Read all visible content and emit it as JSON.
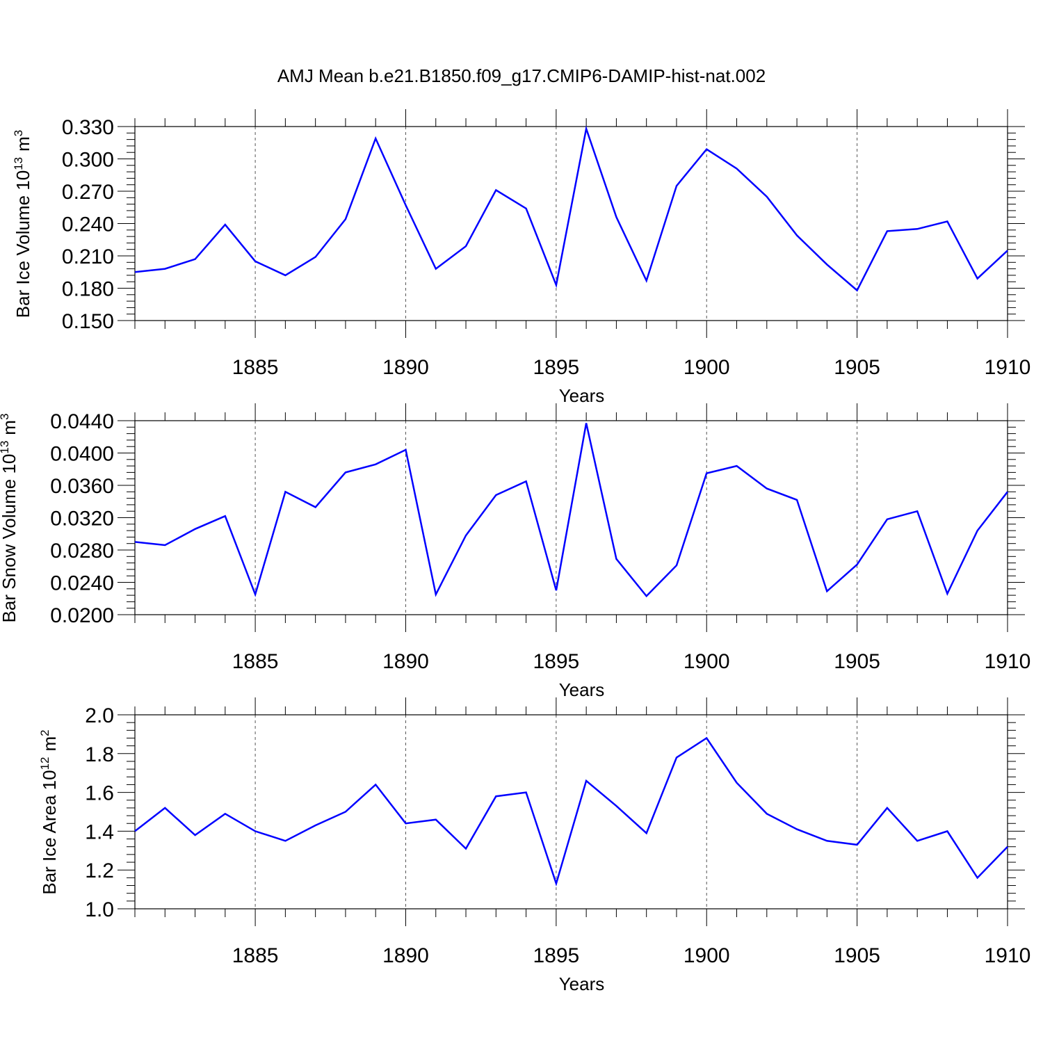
{
  "title": "AMJ Mean b.e21.B1850.f09_g17.CMIP6-DAMIP-hist-nat.002",
  "line_color": "#0000ff",
  "chart_data": [
    {
      "type": "line",
      "xlabel": "Years",
      "ylabel_main": "Bar Ice Volume 10",
      "ylabel_sup": "13",
      "ylabel_unit": "m",
      "ylabel_unit_sup": "3",
      "xlim": [
        1881,
        1910
      ],
      "ylim": [
        0.15,
        0.33
      ],
      "yticks": [
        "0.150",
        "0.180",
        "0.210",
        "0.240",
        "0.270",
        "0.300",
        "0.330"
      ],
      "xticks": [
        "1885",
        "1890",
        "1895",
        "1900",
        "1905",
        "1910"
      ],
      "grid": "vertical dashed at major x ticks",
      "x": [
        1881,
        1882,
        1883,
        1884,
        1885,
        1886,
        1887,
        1888,
        1889,
        1890,
        1891,
        1892,
        1893,
        1894,
        1895,
        1896,
        1897,
        1898,
        1899,
        1900,
        1901,
        1902,
        1903,
        1904,
        1905,
        1906,
        1907,
        1908,
        1909,
        1910
      ],
      "values": [
        0.195,
        0.198,
        0.207,
        0.239,
        0.205,
        0.192,
        0.209,
        0.244,
        0.319,
        0.257,
        0.198,
        0.219,
        0.271,
        0.254,
        0.183,
        0.328,
        0.246,
        0.187,
        0.275,
        0.309,
        0.291,
        0.265,
        0.229,
        0.202,
        0.178,
        0.233,
        0.235,
        0.242,
        0.189,
        0.215
      ]
    },
    {
      "type": "line",
      "xlabel": "Years",
      "ylabel_main": "Bar Snow Volume 10",
      "ylabel_sup": "13",
      "ylabel_unit": "m",
      "ylabel_unit_sup": "3",
      "xlim": [
        1881,
        1910
      ],
      "ylim": [
        0.02,
        0.044
      ],
      "yticks": [
        "0.0200",
        "0.0240",
        "0.0280",
        "0.0320",
        "0.0360",
        "0.0400",
        "0.0440"
      ],
      "xticks": [
        "1885",
        "1890",
        "1895",
        "1900",
        "1905",
        "1910"
      ],
      "grid": "vertical dashed at major x ticks",
      "x": [
        1881,
        1882,
        1883,
        1884,
        1885,
        1886,
        1887,
        1888,
        1889,
        1890,
        1891,
        1892,
        1893,
        1894,
        1895,
        1896,
        1897,
        1898,
        1899,
        1900,
        1901,
        1902,
        1903,
        1904,
        1905,
        1906,
        1907,
        1908,
        1909,
        1910
      ],
      "values": [
        0.029,
        0.0286,
        0.0306,
        0.0322,
        0.0225,
        0.0352,
        0.0333,
        0.0376,
        0.0386,
        0.0404,
        0.0225,
        0.0298,
        0.0348,
        0.0365,
        0.023,
        0.0437,
        0.0269,
        0.0223,
        0.0261,
        0.0375,
        0.0384,
        0.0356,
        0.0342,
        0.0229,
        0.0262,
        0.0318,
        0.0328,
        0.0226,
        0.0304,
        0.0352
      ]
    },
    {
      "type": "line",
      "xlabel": "Years",
      "ylabel_main": "Bar Ice Area 10",
      "ylabel_sup": "12",
      "ylabel_unit": "m",
      "ylabel_unit_sup": "2",
      "xlim": [
        1881,
        1910
      ],
      "ylim": [
        1.0,
        2.0
      ],
      "yticks": [
        "1.0",
        "1.2",
        "1.4",
        "1.6",
        "1.8",
        "2.0"
      ],
      "xticks": [
        "1885",
        "1890",
        "1895",
        "1900",
        "1905",
        "1910"
      ],
      "grid": "vertical dashed at major x ticks",
      "x": [
        1881,
        1882,
        1883,
        1884,
        1885,
        1886,
        1887,
        1888,
        1889,
        1890,
        1891,
        1892,
        1893,
        1894,
        1895,
        1896,
        1897,
        1898,
        1899,
        1900,
        1901,
        1902,
        1903,
        1904,
        1905,
        1906,
        1907,
        1908,
        1909,
        1910
      ],
      "values": [
        1.4,
        1.52,
        1.38,
        1.49,
        1.4,
        1.35,
        1.43,
        1.5,
        1.64,
        1.44,
        1.46,
        1.31,
        1.58,
        1.6,
        1.13,
        1.66,
        1.53,
        1.39,
        1.78,
        1.88,
        1.65,
        1.49,
        1.41,
        1.35,
        1.33,
        1.52,
        1.35,
        1.4,
        1.16,
        1.32
      ]
    }
  ]
}
